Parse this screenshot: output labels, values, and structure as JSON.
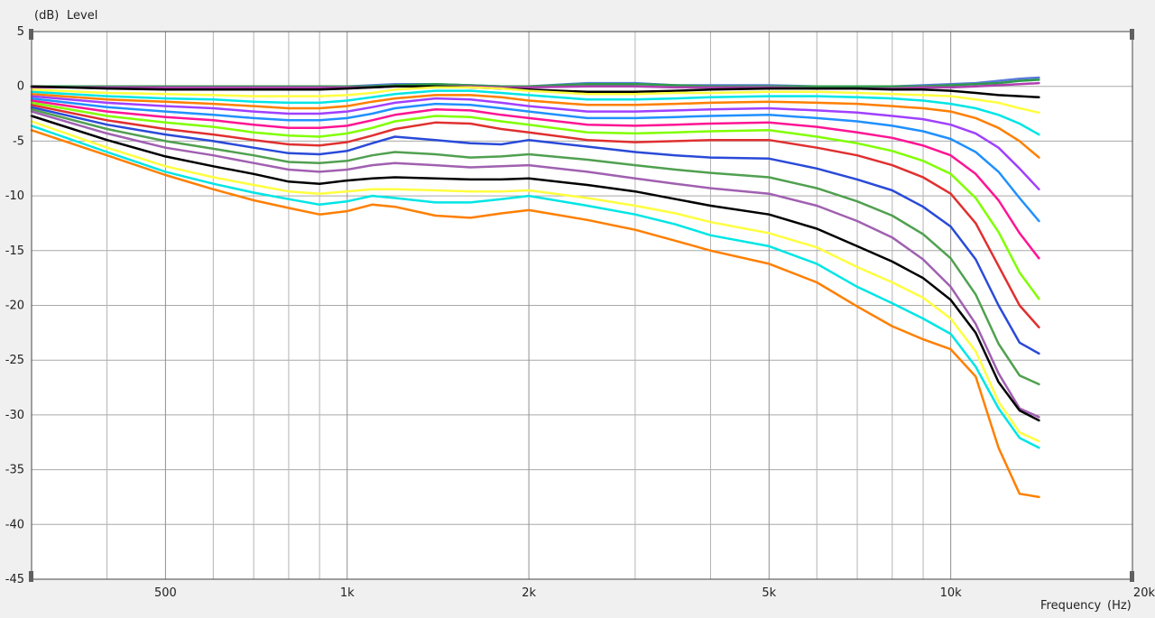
{
  "chart_data": {
    "type": "line",
    "ylabel_unit": "(dB)",
    "ylabel": "Level",
    "xlabel": "Frequency",
    "xlabel_unit": "(Hz)",
    "x_scale": "log",
    "xlim": [
      300,
      20000
    ],
    "ylim": [
      -45,
      5
    ],
    "grid": true,
    "yticks": [
      5,
      0,
      -5,
      -10,
      -15,
      -20,
      -25,
      -30,
      -35,
      -40,
      -45
    ],
    "xticks": [
      {
        "value": 500,
        "label": "500"
      },
      {
        "value": 1000,
        "label": "1k"
      },
      {
        "value": 2000,
        "label": "2k"
      },
      {
        "value": 5000,
        "label": "5k"
      },
      {
        "value": 10000,
        "label": "10k"
      },
      {
        "value": 20000,
        "label": "20k"
      }
    ],
    "minor_xgrid": [
      400,
      600,
      700,
      800,
      900,
      3000,
      4000,
      6000,
      7000,
      8000,
      9000
    ],
    "x": [
      300,
      400,
      500,
      600,
      700,
      800,
      900,
      1000,
      1100,
      1200,
      1400,
      1600,
      1800,
      2000,
      2500,
      3000,
      3500,
      4000,
      5000,
      6000,
      7000,
      8000,
      9000,
      10000,
      11000,
      12000,
      13000,
      14000
    ],
    "series": [
      {
        "color": "#5a7ad8",
        "values": [
          0,
          0,
          0,
          0,
          0,
          0,
          0,
          0,
          0.1,
          0.2,
          0.2,
          0.1,
          0,
          0,
          0.3,
          0.3,
          0.1,
          0.1,
          0.1,
          0,
          0,
          0,
          0.1,
          0.2,
          0.3,
          0.5,
          0.7,
          0.8
        ]
      },
      {
        "color": "#2e9b4a",
        "values": [
          0,
          0,
          0,
          0,
          0,
          0,
          0,
          0,
          0,
          0.1,
          0.2,
          0.1,
          0,
          0,
          0.2,
          0.2,
          0.1,
          0,
          0,
          0,
          0,
          0,
          0,
          0.1,
          0.2,
          0.3,
          0.5,
          0.6
        ]
      },
      {
        "color": "#b040b0",
        "values": [
          -0.1,
          -0.1,
          -0.1,
          -0.1,
          -0.1,
          -0.1,
          -0.1,
          -0.1,
          -0.1,
          0,
          0,
          0,
          -0.1,
          -0.1,
          0,
          0,
          -0.1,
          -0.1,
          -0.1,
          -0.2,
          -0.2,
          -0.2,
          -0.1,
          -0.1,
          0,
          0.1,
          0.2,
          0.3
        ]
      },
      {
        "color": "#000000",
        "values": [
          0,
          -0.2,
          -0.3,
          -0.3,
          -0.3,
          -0.3,
          -0.3,
          -0.2,
          -0.1,
          0,
          0,
          -0.1,
          -0.2,
          -0.3,
          -0.5,
          -0.5,
          -0.4,
          -0.3,
          -0.2,
          -0.2,
          -0.2,
          -0.3,
          -0.3,
          -0.4,
          -0.6,
          -0.8,
          -0.9,
          -1.0
        ]
      },
      {
        "color": "#ffff40",
        "values": [
          -0.3,
          -0.6,
          -0.7,
          -0.8,
          -0.9,
          -0.9,
          -0.9,
          -0.8,
          -0.6,
          -0.3,
          -0.1,
          -0.1,
          -0.2,
          -0.4,
          -0.7,
          -0.7,
          -0.6,
          -0.6,
          -0.5,
          -0.5,
          -0.6,
          -0.7,
          -0.8,
          -0.9,
          -1.2,
          -1.5,
          -2.0,
          -2.4
        ]
      },
      {
        "color": "#00e5e5",
        "values": [
          -0.5,
          -0.9,
          -1.1,
          -1.2,
          -1.4,
          -1.5,
          -1.5,
          -1.3,
          -1.0,
          -0.7,
          -0.4,
          -0.4,
          -0.6,
          -0.8,
          -1.2,
          -1.2,
          -1.1,
          -1.0,
          -0.9,
          -0.9,
          -1.0,
          -1.1,
          -1.3,
          -1.6,
          -2.0,
          -2.6,
          -3.4,
          -4.4
        ]
      },
      {
        "color": "#ff7f00",
        "values": [
          -0.7,
          -1.2,
          -1.4,
          -1.6,
          -1.8,
          -2.0,
          -2.0,
          -1.8,
          -1.4,
          -1.1,
          -0.8,
          -0.8,
          -1.0,
          -1.3,
          -1.7,
          -1.7,
          -1.6,
          -1.5,
          -1.4,
          -1.5,
          -1.6,
          -1.8,
          -2.0,
          -2.3,
          -2.9,
          -3.8,
          -5.0,
          -6.5
        ]
      },
      {
        "color": "#a040ff",
        "values": [
          -0.9,
          -1.5,
          -1.8,
          -2.0,
          -2.3,
          -2.5,
          -2.5,
          -2.3,
          -1.9,
          -1.5,
          -1.1,
          -1.2,
          -1.5,
          -1.8,
          -2.3,
          -2.3,
          -2.2,
          -2.1,
          -2.0,
          -2.2,
          -2.4,
          -2.7,
          -3.0,
          -3.5,
          -4.3,
          -5.6,
          -7.5,
          -9.4
        ]
      },
      {
        "color": "#2090ff",
        "values": [
          -1.1,
          -1.9,
          -2.3,
          -2.6,
          -2.9,
          -3.1,
          -3.1,
          -2.9,
          -2.5,
          -2.0,
          -1.6,
          -1.7,
          -2.0,
          -2.3,
          -2.9,
          -2.9,
          -2.8,
          -2.7,
          -2.6,
          -2.9,
          -3.2,
          -3.6,
          -4.1,
          -4.8,
          -6.0,
          -7.8,
          -10.2,
          -12.3
        ]
      },
      {
        "color": "#ff1493",
        "values": [
          -1.3,
          -2.3,
          -2.8,
          -3.1,
          -3.5,
          -3.8,
          -3.8,
          -3.6,
          -3.1,
          -2.6,
          -2.1,
          -2.2,
          -2.6,
          -2.9,
          -3.5,
          -3.6,
          -3.5,
          -3.4,
          -3.3,
          -3.7,
          -4.2,
          -4.7,
          -5.4,
          -6.3,
          -8.0,
          -10.4,
          -13.4,
          -15.7
        ]
      },
      {
        "color": "#80ff00",
        "values": [
          -1.5,
          -2.7,
          -3.3,
          -3.7,
          -4.2,
          -4.5,
          -4.6,
          -4.3,
          -3.8,
          -3.2,
          -2.7,
          -2.8,
          -3.2,
          -3.5,
          -4.2,
          -4.3,
          -4.2,
          -4.1,
          -4.0,
          -4.6,
          -5.2,
          -5.9,
          -6.8,
          -8.0,
          -10.2,
          -13.3,
          -17.0,
          -19.4
        ]
      },
      {
        "color": "#e03030",
        "values": [
          -1.7,
          -3.1,
          -3.9,
          -4.4,
          -4.9,
          -5.3,
          -5.4,
          -5.1,
          -4.5,
          -3.9,
          -3.3,
          -3.4,
          -3.9,
          -4.2,
          -4.9,
          -5.1,
          -5.0,
          -4.9,
          -4.9,
          -5.6,
          -6.3,
          -7.2,
          -8.3,
          -9.8,
          -12.5,
          -16.4,
          -20.0,
          -22.0
        ]
      },
      {
        "color": "#2a4ad8",
        "values": [
          -1.9,
          -3.5,
          -4.4,
          -5.0,
          -5.6,
          -6.1,
          -6.2,
          -5.9,
          -5.2,
          -4.6,
          -4.9,
          -5.2,
          -5.3,
          -4.9,
          -5.5,
          -6.0,
          -6.3,
          -6.5,
          -6.6,
          -7.5,
          -8.5,
          -9.5,
          -11.0,
          -12.8,
          -15.8,
          -20.0,
          -23.4,
          -24.4
        ]
      },
      {
        "color": "#50a050",
        "values": [
          -2.1,
          -3.9,
          -5.0,
          -5.7,
          -6.3,
          -6.9,
          -7.0,
          -6.8,
          -6.3,
          -6.0,
          -6.2,
          -6.5,
          -6.4,
          -6.2,
          -6.7,
          -7.2,
          -7.6,
          -7.9,
          -8.3,
          -9.3,
          -10.5,
          -11.8,
          -13.5,
          -15.7,
          -19.0,
          -23.5,
          -26.4,
          -27.2
        ]
      },
      {
        "color": "#a060b0",
        "values": [
          -2.3,
          -4.3,
          -5.6,
          -6.3,
          -7.0,
          -7.6,
          -7.8,
          -7.6,
          -7.2,
          -7.0,
          -7.2,
          -7.4,
          -7.3,
          -7.2,
          -7.8,
          -8.4,
          -8.9,
          -9.3,
          -9.8,
          -10.9,
          -12.3,
          -13.8,
          -15.8,
          -18.3,
          -21.7,
          -26.2,
          -29.4,
          -30.2
        ]
      },
      {
        "color": "#000000",
        "values": [
          -2.7,
          -4.9,
          -6.4,
          -7.3,
          -8.0,
          -8.7,
          -8.9,
          -8.6,
          -8.4,
          -8.3,
          -8.4,
          -8.5,
          -8.5,
          -8.4,
          -9.0,
          -9.6,
          -10.3,
          -10.9,
          -11.7,
          -13.0,
          -14.6,
          -16.0,
          -17.5,
          -19.5,
          -22.5,
          -27.0,
          -29.6,
          -30.5
        ]
      },
      {
        "color": "#ffff40",
        "values": [
          -3.2,
          -5.6,
          -7.3,
          -8.3,
          -9.0,
          -9.6,
          -9.8,
          -9.6,
          -9.4,
          -9.4,
          -9.5,
          -9.6,
          -9.6,
          -9.5,
          -10.2,
          -10.9,
          -11.6,
          -12.4,
          -13.4,
          -14.7,
          -16.5,
          -17.9,
          -19.3,
          -21.2,
          -24.2,
          -28.8,
          -31.6,
          -32.4
        ]
      },
      {
        "color": "#00e5e5",
        "values": [
          -3.6,
          -6.0,
          -7.8,
          -8.9,
          -9.7,
          -10.3,
          -10.8,
          -10.5,
          -10.0,
          -10.2,
          -10.6,
          -10.6,
          -10.3,
          -10.0,
          -10.9,
          -11.7,
          -12.6,
          -13.6,
          -14.6,
          -16.2,
          -18.3,
          -19.8,
          -21.2,
          -22.6,
          -25.6,
          -29.4,
          -32.1,
          -33.0
        ]
      },
      {
        "color": "#ff7f00",
        "values": [
          -4.0,
          -6.3,
          -8.1,
          -9.4,
          -10.4,
          -11.1,
          -11.7,
          -11.4,
          -10.8,
          -11.0,
          -11.8,
          -12.0,
          -11.6,
          -11.3,
          -12.2,
          -13.1,
          -14.1,
          -15.0,
          -16.2,
          -17.9,
          -20.1,
          -21.9,
          -23.1,
          -24.0,
          -26.5,
          -33.0,
          -37.2,
          -37.5
        ]
      }
    ]
  }
}
